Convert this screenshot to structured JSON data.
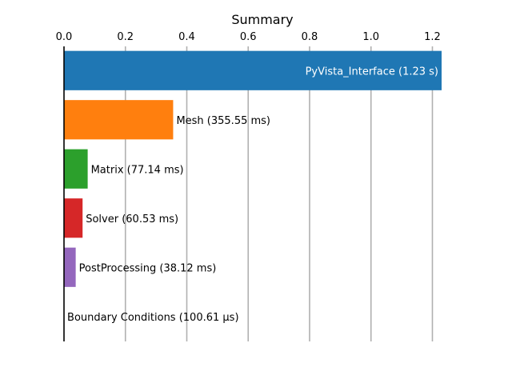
{
  "chart_data": {
    "type": "bar",
    "orientation": "horizontal",
    "title": "Summary",
    "xlabel": "",
    "ylabel": "",
    "x_axis_position": "top",
    "xlim": [
      0,
      1.23
    ],
    "xticks": [
      0.0,
      0.2,
      0.4,
      0.6,
      0.8,
      1.0,
      1.2
    ],
    "xtick_labels": [
      "0.0",
      "0.2",
      "0.4",
      "0.6",
      "0.8",
      "1.0",
      "1.2"
    ],
    "grid": "vertical",
    "legend": "none",
    "bars": [
      {
        "name": "PyVista_Interface",
        "value": 1.23,
        "label": "PyVista_Interface (1.23 s)",
        "color": "#1f77b4",
        "label_inside": true
      },
      {
        "name": "Mesh",
        "value": 0.35555,
        "label": "Mesh (355.55 ms)",
        "color": "#ff7f0e",
        "label_inside": false
      },
      {
        "name": "Matrix",
        "value": 0.07714,
        "label": "Matrix (77.14 ms)",
        "color": "#2ca02c",
        "label_inside": false
      },
      {
        "name": "Solver",
        "value": 0.06053,
        "label": "Solver (60.53 ms)",
        "color": "#d62728",
        "label_inside": false
      },
      {
        "name": "PostProcessing",
        "value": 0.03812,
        "label": "PostProcessing (38.12 ms)",
        "color": "#9467bd",
        "label_inside": false
      },
      {
        "name": "Boundary Conditions",
        "value": 0.00010061,
        "label": "Boundary Conditions (100.61 µs)",
        "color": "#8c564b",
        "label_inside": false
      }
    ]
  }
}
